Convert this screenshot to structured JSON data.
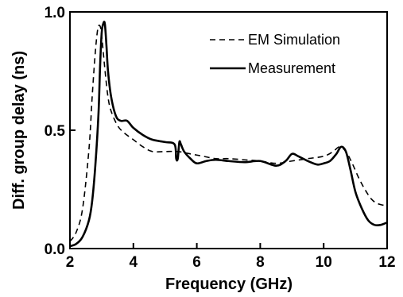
{
  "chart_data": {
    "type": "line",
    "title": "",
    "xlabel": "Frequency (GHz)",
    "ylabel": "Diff. group delay (ns)",
    "xlim": [
      2,
      12
    ],
    "ylim": [
      0.0,
      1.0
    ],
    "x_ticks": [
      "2",
      "4",
      "6",
      "8",
      "10",
      "12"
    ],
    "y_ticks": [
      "0.0",
      "0.5",
      "1.0"
    ],
    "legend_position": "top-right",
    "grid": false,
    "series": [
      {
        "name": "EM Simulation",
        "style": "dashed",
        "color": "#000000",
        "x": [
          2.0,
          2.2,
          2.4,
          2.6,
          2.7,
          2.8,
          2.88,
          2.95,
          3.0,
          3.1,
          3.2,
          3.3,
          3.5,
          3.7,
          4.0,
          4.3,
          4.6,
          5.0,
          5.4,
          5.8,
          6.2,
          6.6,
          7.0,
          7.5,
          8.0,
          8.5,
          9.0,
          9.5,
          10.0,
          10.3,
          10.5,
          10.7,
          10.9,
          11.1,
          11.3,
          11.5,
          11.7,
          12.0
        ],
        "y": [
          0.03,
          0.07,
          0.17,
          0.42,
          0.64,
          0.83,
          0.93,
          0.94,
          0.9,
          0.76,
          0.64,
          0.58,
          0.52,
          0.49,
          0.46,
          0.43,
          0.41,
          0.41,
          0.41,
          0.4,
          0.39,
          0.38,
          0.38,
          0.375,
          0.37,
          0.36,
          0.37,
          0.38,
          0.39,
          0.41,
          0.43,
          0.41,
          0.36,
          0.3,
          0.25,
          0.21,
          0.19,
          0.18
        ]
      },
      {
        "name": "Measurement",
        "style": "solid",
        "color": "#000000",
        "x": [
          2.0,
          2.2,
          2.4,
          2.6,
          2.7,
          2.8,
          2.9,
          2.95,
          3.0,
          3.05,
          3.1,
          3.15,
          3.2,
          3.3,
          3.45,
          3.6,
          3.8,
          4.0,
          4.3,
          4.6,
          5.0,
          5.3,
          5.35,
          5.4,
          5.45,
          5.5,
          5.6,
          5.8,
          6.0,
          6.3,
          6.6,
          7.0,
          7.5,
          8.0,
          8.5,
          8.8,
          9.0,
          9.2,
          9.5,
          9.8,
          10.0,
          10.2,
          10.4,
          10.55,
          10.7,
          10.85,
          11.0,
          11.2,
          11.4,
          11.6,
          11.8,
          12.0
        ],
        "y": [
          0.01,
          0.02,
          0.05,
          0.12,
          0.2,
          0.35,
          0.57,
          0.77,
          0.91,
          0.95,
          0.95,
          0.86,
          0.75,
          0.64,
          0.56,
          0.54,
          0.54,
          0.51,
          0.48,
          0.46,
          0.45,
          0.44,
          0.38,
          0.38,
          0.45,
          0.44,
          0.41,
          0.38,
          0.36,
          0.37,
          0.375,
          0.37,
          0.365,
          0.37,
          0.35,
          0.37,
          0.4,
          0.39,
          0.37,
          0.355,
          0.36,
          0.37,
          0.4,
          0.43,
          0.41,
          0.33,
          0.24,
          0.17,
          0.12,
          0.1,
          0.1,
          0.11
        ]
      }
    ]
  }
}
